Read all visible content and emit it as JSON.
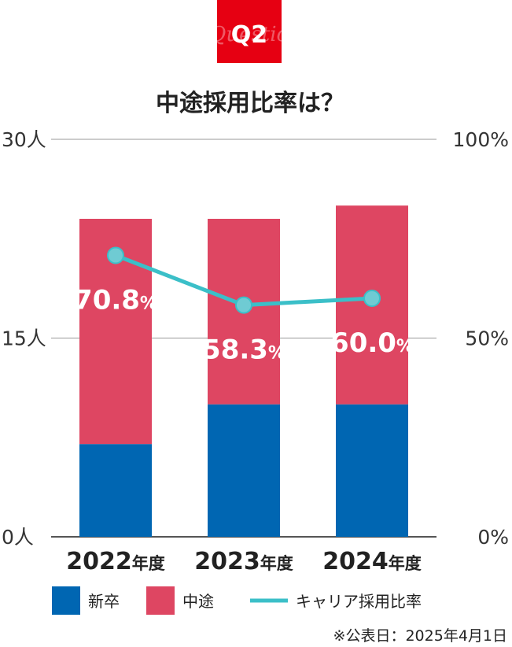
{
  "badge": {
    "label": "Q2",
    "watermark": "Question"
  },
  "chart_data": {
    "type": "bar",
    "title": "中途採用比率は？",
    "categories": [
      "2022",
      "2023",
      "2024"
    ],
    "category_suffix": "年度",
    "series": [
      {
        "name": "新卒",
        "color": "#0066b2",
        "values": [
          7,
          10,
          10
        ]
      },
      {
        "name": "中途",
        "color": "#de4662",
        "values": [
          17,
          14,
          15
        ]
      }
    ],
    "line_series": {
      "name": "キャリア採用比率",
      "color": "#3bbfc8",
      "values": [
        70.8,
        58.3,
        60.0
      ],
      "labels": [
        {
          "num": "70.8",
          "unit": "%"
        },
        {
          "num": "58.3",
          "unit": "%"
        },
        {
          "num": "60.0",
          "unit": "%"
        }
      ]
    },
    "y_left": {
      "ylim": [
        0,
        30
      ],
      "ticks": [
        "0人",
        "15人",
        "30人"
      ],
      "tick_values": [
        0,
        15,
        30
      ]
    },
    "y_right": {
      "ylim": [
        0,
        100
      ],
      "ticks": [
        "0%",
        "50%",
        "100%"
      ],
      "tick_values": [
        0,
        50,
        100
      ]
    },
    "stacked": true,
    "grid": true,
    "legend_position": "bottom-left",
    "note": "※公表日：2025年4月1日"
  }
}
